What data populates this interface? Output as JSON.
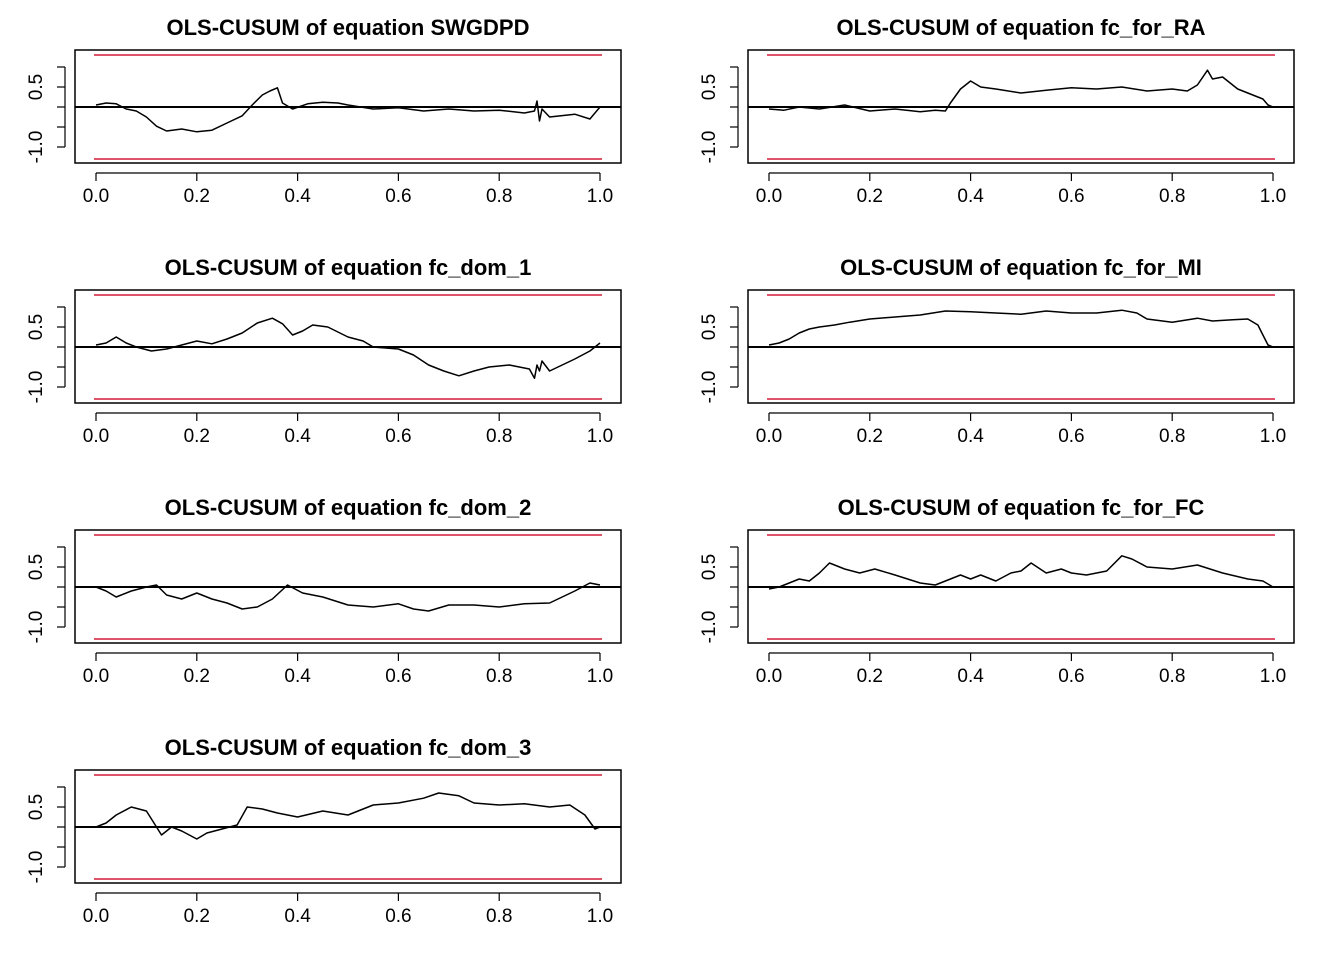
{
  "colors": {
    "boundary": "#df536b",
    "line": "#000000",
    "background": "#ffffff"
  },
  "chart_data": [
    {
      "type": "line",
      "title": "OLS-CUSUM of equation SWGDPD",
      "xlim": [
        0,
        1
      ],
      "ylim": [
        -1.4,
        1.4
      ],
      "xticks": [
        "0.0",
        "0.2",
        "0.4",
        "0.6",
        "0.8",
        "1.0"
      ],
      "yticks": [
        "-1.0",
        "0.5"
      ],
      "boundary": 1.3,
      "x": [
        0,
        0.02,
        0.04,
        0.06,
        0.08,
        0.1,
        0.12,
        0.14,
        0.17,
        0.2,
        0.23,
        0.26,
        0.29,
        0.31,
        0.33,
        0.345,
        0.36,
        0.37,
        0.39,
        0.42,
        0.45,
        0.48,
        0.5,
        0.55,
        0.6,
        0.65,
        0.7,
        0.75,
        0.8,
        0.85,
        0.87,
        0.875,
        0.88,
        0.885,
        0.9,
        0.95,
        0.98,
        1.0
      ],
      "values": [
        0.05,
        0.1,
        0.08,
        -0.05,
        -0.1,
        -0.25,
        -0.48,
        -0.6,
        -0.55,
        -0.62,
        -0.58,
        -0.4,
        -0.22,
        0.05,
        0.3,
        0.4,
        0.48,
        0.1,
        -0.05,
        0.08,
        0.12,
        0.1,
        0.05,
        -0.05,
        -0.02,
        -0.1,
        -0.05,
        -0.1,
        -0.08,
        -0.15,
        -0.1,
        0.15,
        -0.35,
        -0.05,
        -0.25,
        -0.18,
        -0.3,
        0.0
      ]
    },
    {
      "type": "line",
      "title": "OLS-CUSUM of equation fc_for_RA",
      "xlim": [
        0,
        1
      ],
      "ylim": [
        -1.4,
        1.4
      ],
      "xticks": [
        "0.0",
        "0.2",
        "0.4",
        "0.6",
        "0.8",
        "1.0"
      ],
      "yticks": [
        "-1.0",
        "0.5"
      ],
      "boundary": 1.3,
      "x": [
        0,
        0.03,
        0.06,
        0.1,
        0.15,
        0.2,
        0.25,
        0.3,
        0.33,
        0.35,
        0.36,
        0.38,
        0.4,
        0.42,
        0.45,
        0.5,
        0.55,
        0.6,
        0.65,
        0.7,
        0.75,
        0.8,
        0.83,
        0.85,
        0.87,
        0.88,
        0.9,
        0.93,
        0.96,
        0.98,
        0.99,
        1.0
      ],
      "values": [
        -0.05,
        -0.08,
        0.0,
        -0.05,
        0.05,
        -0.1,
        -0.05,
        -0.12,
        -0.08,
        -0.1,
        0.1,
        0.45,
        0.65,
        0.5,
        0.45,
        0.35,
        0.42,
        0.48,
        0.45,
        0.5,
        0.4,
        0.45,
        0.4,
        0.55,
        0.92,
        0.7,
        0.75,
        0.45,
        0.3,
        0.2,
        0.05,
        0.0
      ]
    },
    {
      "type": "line",
      "title": "OLS-CUSUM of equation fc_dom_1",
      "xlim": [
        0,
        1
      ],
      "ylim": [
        -1.4,
        1.4
      ],
      "xticks": [
        "0.0",
        "0.2",
        "0.4",
        "0.6",
        "0.8",
        "1.0"
      ],
      "yticks": [
        "-1.0",
        "0.5"
      ],
      "boundary": 1.3,
      "x": [
        0,
        0.02,
        0.04,
        0.06,
        0.08,
        0.11,
        0.14,
        0.17,
        0.2,
        0.23,
        0.26,
        0.29,
        0.32,
        0.35,
        0.37,
        0.39,
        0.41,
        0.43,
        0.46,
        0.5,
        0.53,
        0.55,
        0.6,
        0.63,
        0.66,
        0.69,
        0.72,
        0.75,
        0.78,
        0.82,
        0.86,
        0.87,
        0.875,
        0.88,
        0.885,
        0.9,
        0.95,
        0.98,
        1.0
      ],
      "values": [
        0.05,
        0.1,
        0.25,
        0.1,
        0.0,
        -0.1,
        -0.05,
        0.05,
        0.15,
        0.08,
        0.2,
        0.35,
        0.6,
        0.72,
        0.58,
        0.3,
        0.4,
        0.55,
        0.5,
        0.25,
        0.15,
        0.0,
        -0.05,
        -0.2,
        -0.45,
        -0.6,
        -0.72,
        -0.6,
        -0.5,
        -0.45,
        -0.55,
        -0.78,
        -0.45,
        -0.6,
        -0.35,
        -0.6,
        -0.3,
        -0.1,
        0.1
      ]
    },
    {
      "type": "line",
      "title": "OLS-CUSUM of equation fc_for_MI",
      "xlim": [
        0,
        1
      ],
      "ylim": [
        -1.4,
        1.4
      ],
      "xticks": [
        "0.0",
        "0.2",
        "0.4",
        "0.6",
        "0.8",
        "1.0"
      ],
      "yticks": [
        "-1.0",
        "0.5"
      ],
      "boundary": 1.3,
      "x": [
        0,
        0.02,
        0.04,
        0.06,
        0.08,
        0.1,
        0.13,
        0.16,
        0.2,
        0.25,
        0.3,
        0.35,
        0.4,
        0.45,
        0.5,
        0.55,
        0.6,
        0.65,
        0.7,
        0.73,
        0.75,
        0.8,
        0.85,
        0.88,
        0.92,
        0.95,
        0.97,
        0.98,
        0.99,
        1.0
      ],
      "values": [
        0.05,
        0.1,
        0.2,
        0.35,
        0.45,
        0.5,
        0.55,
        0.62,
        0.7,
        0.75,
        0.8,
        0.9,
        0.88,
        0.85,
        0.82,
        0.9,
        0.85,
        0.85,
        0.92,
        0.85,
        0.7,
        0.62,
        0.72,
        0.65,
        0.68,
        0.7,
        0.55,
        0.3,
        0.05,
        0.0
      ]
    },
    {
      "type": "line",
      "title": "OLS-CUSUM of equation fc_dom_2",
      "xlim": [
        0,
        1
      ],
      "ylim": [
        -1.4,
        1.4
      ],
      "xticks": [
        "0.0",
        "0.2",
        "0.4",
        "0.6",
        "0.8",
        "1.0"
      ],
      "yticks": [
        "-1.0",
        "0.5"
      ],
      "boundary": 1.3,
      "x": [
        0,
        0.02,
        0.04,
        0.07,
        0.1,
        0.12,
        0.14,
        0.17,
        0.2,
        0.23,
        0.26,
        0.29,
        0.32,
        0.35,
        0.38,
        0.41,
        0.45,
        0.5,
        0.55,
        0.6,
        0.63,
        0.66,
        0.7,
        0.75,
        0.8,
        0.85,
        0.9,
        0.95,
        0.98,
        1.0
      ],
      "values": [
        0.0,
        -0.1,
        -0.25,
        -0.1,
        0.0,
        0.05,
        -0.2,
        -0.3,
        -0.15,
        -0.3,
        -0.4,
        -0.55,
        -0.5,
        -0.3,
        0.05,
        -0.15,
        -0.25,
        -0.45,
        -0.5,
        -0.42,
        -0.55,
        -0.6,
        -0.45,
        -0.45,
        -0.5,
        -0.42,
        -0.4,
        -0.1,
        0.1,
        0.05
      ]
    },
    {
      "type": "line",
      "title": "OLS-CUSUM of equation fc_for_FC",
      "xlim": [
        0,
        1
      ],
      "ylim": [
        -1.4,
        1.4
      ],
      "xticks": [
        "0.0",
        "0.2",
        "0.4",
        "0.6",
        "0.8",
        "1.0"
      ],
      "yticks": [
        "-1.0",
        "0.5"
      ],
      "boundary": 1.3,
      "x": [
        0,
        0.02,
        0.04,
        0.06,
        0.08,
        0.1,
        0.12,
        0.15,
        0.18,
        0.21,
        0.25,
        0.3,
        0.33,
        0.35,
        0.38,
        0.4,
        0.42,
        0.45,
        0.48,
        0.5,
        0.52,
        0.55,
        0.58,
        0.6,
        0.63,
        0.67,
        0.7,
        0.72,
        0.75,
        0.8,
        0.85,
        0.9,
        0.95,
        0.98,
        1.0
      ],
      "values": [
        -0.05,
        0.0,
        0.1,
        0.2,
        0.15,
        0.35,
        0.6,
        0.45,
        0.35,
        0.45,
        0.3,
        0.1,
        0.05,
        0.15,
        0.3,
        0.2,
        0.3,
        0.15,
        0.35,
        0.4,
        0.6,
        0.35,
        0.45,
        0.35,
        0.3,
        0.4,
        0.78,
        0.7,
        0.5,
        0.45,
        0.55,
        0.35,
        0.2,
        0.15,
        0.0
      ]
    },
    {
      "type": "line",
      "title": "OLS-CUSUM of equation fc_dom_3",
      "xlim": [
        0,
        1
      ],
      "ylim": [
        -1.4,
        1.4
      ],
      "xticks": [
        "0.0",
        "0.2",
        "0.4",
        "0.6",
        "0.8",
        "1.0"
      ],
      "yticks": [
        "-1.0",
        "0.5"
      ],
      "boundary": 1.3,
      "x": [
        0,
        0.02,
        0.04,
        0.07,
        0.1,
        0.12,
        0.13,
        0.15,
        0.17,
        0.2,
        0.22,
        0.25,
        0.28,
        0.3,
        0.33,
        0.36,
        0.4,
        0.45,
        0.5,
        0.55,
        0.6,
        0.65,
        0.68,
        0.72,
        0.75,
        0.8,
        0.85,
        0.9,
        0.94,
        0.97,
        0.99,
        1.0
      ],
      "values": [
        0.0,
        0.1,
        0.3,
        0.5,
        0.4,
        0.0,
        -0.2,
        0.0,
        -0.1,
        -0.3,
        -0.15,
        -0.05,
        0.05,
        0.5,
        0.45,
        0.35,
        0.25,
        0.4,
        0.3,
        0.55,
        0.6,
        0.72,
        0.85,
        0.78,
        0.6,
        0.55,
        0.58,
        0.5,
        0.55,
        0.3,
        -0.05,
        0.0
      ]
    }
  ]
}
